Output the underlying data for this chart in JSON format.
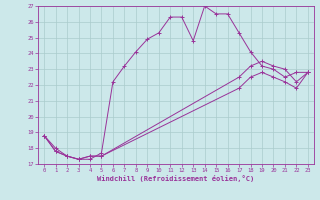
{
  "xlabel": "Windchill (Refroidissement éolien,°C)",
  "bg_color": "#cce8ea",
  "grid_color": "#aacccc",
  "line_color": "#993399",
  "xlim": [
    -0.5,
    23.5
  ],
  "ylim": [
    17,
    27
  ],
  "yticks": [
    17,
    18,
    19,
    20,
    21,
    22,
    23,
    24,
    25,
    26,
    27
  ],
  "xticks": [
    0,
    1,
    2,
    3,
    4,
    5,
    6,
    7,
    8,
    9,
    10,
    11,
    12,
    13,
    14,
    15,
    16,
    17,
    18,
    19,
    20,
    21,
    22,
    23
  ],
  "series": [
    {
      "x": [
        0,
        1,
        2,
        3,
        4,
        5,
        6,
        7,
        8,
        9,
        10,
        11,
        12,
        13,
        14,
        15,
        16,
        17,
        18,
        19,
        20,
        21,
        22,
        23
      ],
      "y": [
        18.8,
        18.0,
        17.5,
        17.3,
        17.3,
        17.7,
        22.2,
        23.2,
        24.1,
        24.9,
        25.3,
        26.3,
        26.3,
        24.8,
        27.0,
        26.5,
        26.5,
        25.3,
        24.1,
        23.2,
        23.0,
        22.5,
        22.8,
        22.8
      ]
    },
    {
      "x": [
        0,
        1,
        2,
        3,
        4,
        5,
        17,
        18,
        19,
        20,
        21,
        22,
        23
      ],
      "y": [
        18.8,
        17.8,
        17.5,
        17.3,
        17.5,
        17.5,
        22.5,
        23.2,
        23.5,
        23.2,
        23.0,
        22.2,
        22.8
      ]
    },
    {
      "x": [
        0,
        1,
        2,
        3,
        4,
        5,
        17,
        18,
        19,
        20,
        21,
        22,
        23
      ],
      "y": [
        18.8,
        17.8,
        17.5,
        17.3,
        17.5,
        17.5,
        21.8,
        22.5,
        22.8,
        22.5,
        22.2,
        21.8,
        22.8
      ]
    }
  ]
}
